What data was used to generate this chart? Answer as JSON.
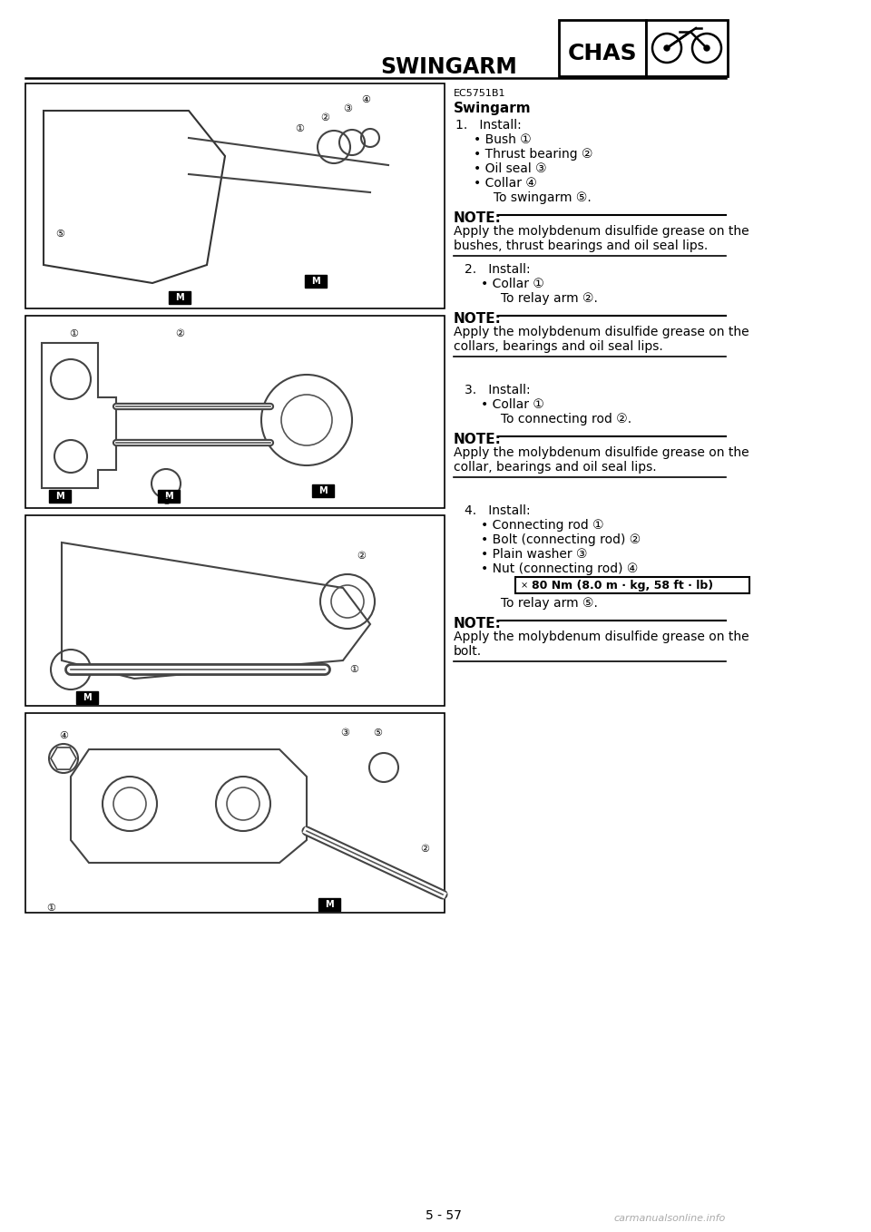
{
  "page_title": "SWINGARM",
  "chas_label": "CHAS",
  "page_number": "5 - 57",
  "section_code": "EC5751B1",
  "section_title": "Swingarm",
  "background_color": "#ffffff",
  "text_color": "#000000",
  "step1_install": "1.   Install:",
  "step1_bullets": [
    "Bush ①",
    "Thrust bearing ②",
    "Oil seal ③",
    "Collar ④"
  ],
  "step1_to": "     To swingarm ⑤.",
  "note1_header": "NOTE:",
  "note1_line1": "Apply the molybdenum disulfide grease on the",
  "note1_line2": "bushes, thrust bearings and oil seal lips.",
  "step2_install": "2.   Install:",
  "step2_bullets": [
    "Collar ①"
  ],
  "step2_to": "     To relay arm ②.",
  "note2_header": "NOTE:",
  "note2_line1": "Apply the molybdenum disulfide grease on the",
  "note2_line2": "collars, bearings and oil seal lips.",
  "step3_install": "3.   Install:",
  "step3_bullets": [
    "Collar ①"
  ],
  "step3_to": "     To connecting rod ②.",
  "note3_header": "NOTE:",
  "note3_line1": "Apply the molybdenum disulfide grease on the",
  "note3_line2": "collar, bearings and oil seal lips.",
  "step4_install": "4.   Install:",
  "step4_bullets": [
    "Connecting rod ①",
    "Bolt (connecting rod) ②",
    "Plain washer ③",
    "Nut (connecting rod) ④"
  ],
  "step4_torque": "80 Nm (8.0 m · kg, 58 ft · lb)",
  "step4_to": "     To relay arm ⑤.",
  "note4_header": "NOTE:",
  "note4_line1": "Apply the molybdenum disulfide grease on the",
  "note4_line2": "bolt.",
  "footer_text": "carmanualsonline.info",
  "pw": 960,
  "ph": 1358
}
